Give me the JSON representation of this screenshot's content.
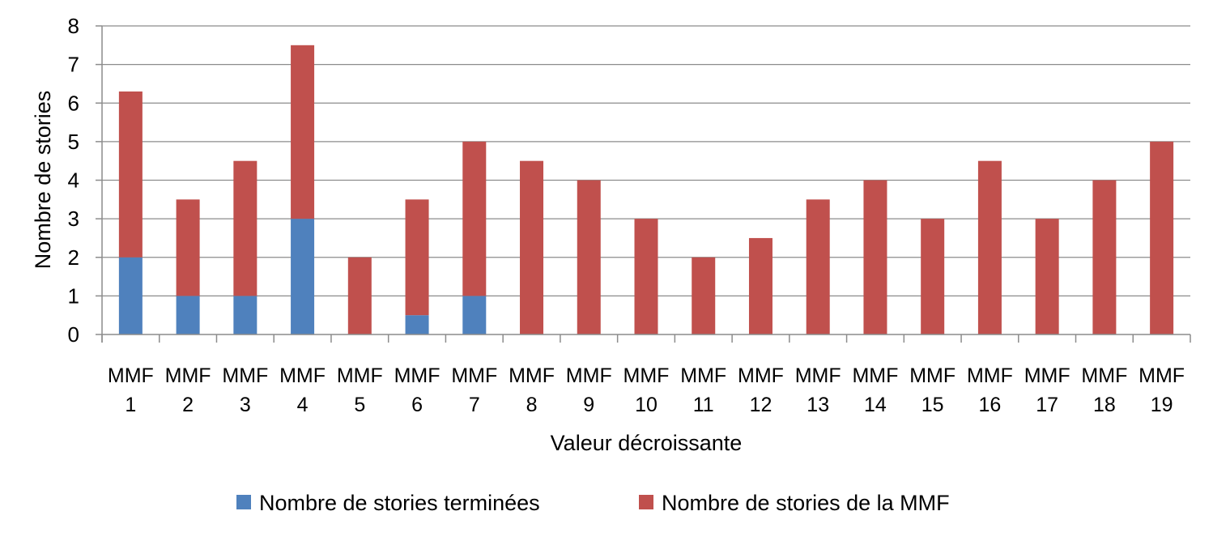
{
  "chart_data": {
    "type": "bar",
    "stacked": true,
    "title": "",
    "xlabel": "Valeur décroissante",
    "ylabel": "Nombre de stories",
    "ylim": [
      0,
      8
    ],
    "yticks": [
      "0",
      "1",
      "2",
      "3",
      "4",
      "5",
      "6",
      "7",
      "8"
    ],
    "grid": true,
    "legend_position": "bottom",
    "categories": [
      {
        "line1": "MMF",
        "line2": "1"
      },
      {
        "line1": "MMF",
        "line2": "2"
      },
      {
        "line1": "MMF",
        "line2": "3"
      },
      {
        "line1": "MMF",
        "line2": "4"
      },
      {
        "line1": "MMF",
        "line2": "5"
      },
      {
        "line1": "MMF",
        "line2": "6"
      },
      {
        "line1": "MMF",
        "line2": "7"
      },
      {
        "line1": "MMF",
        "line2": "8"
      },
      {
        "line1": "MMF",
        "line2": "9"
      },
      {
        "line1": "MMF",
        "line2": "10"
      },
      {
        "line1": "MMF",
        "line2": "11"
      },
      {
        "line1": "MMF",
        "line2": "12"
      },
      {
        "line1": "MMF",
        "line2": "13"
      },
      {
        "line1": "MMF",
        "line2": "14"
      },
      {
        "line1": "MMF",
        "line2": "15"
      },
      {
        "line1": "MMF",
        "line2": "16"
      },
      {
        "line1": "MMF",
        "line2": "17"
      },
      {
        "line1": "MMF",
        "line2": "18"
      },
      {
        "line1": "MMF",
        "line2": "19"
      }
    ],
    "series": [
      {
        "name": "Nombre de stories terminées",
        "color": "#4f81bd",
        "values": [
          2,
          1,
          1,
          3,
          0,
          0.5,
          1,
          0,
          0,
          0,
          0,
          0,
          0,
          0,
          0,
          0,
          0,
          0,
          0
        ]
      },
      {
        "name": "Nombre de stories de la MMF",
        "color": "#c0504d",
        "values": [
          4.3,
          2.5,
          3.5,
          4.5,
          2,
          3,
          4,
          4.5,
          4,
          3,
          2,
          2.5,
          3.5,
          4,
          3,
          4.5,
          3,
          4,
          5
        ]
      }
    ]
  }
}
